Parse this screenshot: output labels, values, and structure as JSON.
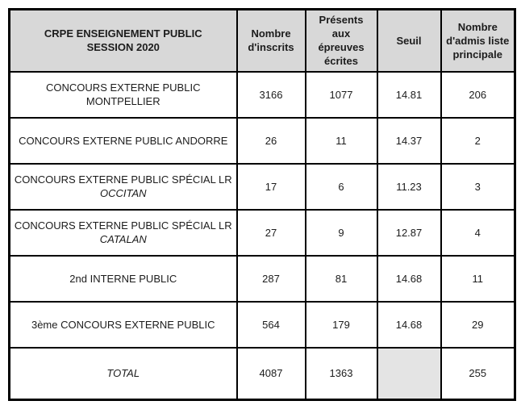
{
  "colors": {
    "header_background": "#d8d8d8",
    "total_seuil_background": "#e4e4e4",
    "border": "#000000",
    "text": "#1c1c1c",
    "page_background": "#ffffff"
  },
  "table": {
    "title_line1": "CRPE ENSEIGNEMENT PUBLIC",
    "title_line2": "SESSION 2020",
    "columns": [
      "Nombre d'inscrits",
      "Présents aux épreuves écrites",
      "Seuil",
      "Nombre d'admis liste principale"
    ],
    "rows": [
      {
        "label_line1": "CONCOURS EXTERNE PUBLIC",
        "label_line2": "MONTPELLIER",
        "inscrits": "3166",
        "presents": "1077",
        "seuil": "14.81",
        "admis": "206"
      },
      {
        "label_line1": "CONCOURS EXTERNE PUBLIC ANDORRE",
        "label_line2": "",
        "inscrits": "26",
        "presents": "11",
        "seuil": "14.37",
        "admis": "2"
      },
      {
        "label_line1": "CONCOURS EXTERNE PUBLIC SPÉCIAL LR",
        "label_line2": "OCCITAN",
        "inscrits": "17",
        "presents": "6",
        "seuil": "11.23",
        "admis": "3"
      },
      {
        "label_line1": "CONCOURS EXTERNE PUBLIC SPÉCIAL LR",
        "label_line2": "CATALAN",
        "inscrits": "27",
        "presents": "9",
        "seuil": "12.87",
        "admis": "4"
      },
      {
        "label_line1": "2nd INTERNE PUBLIC",
        "label_line2": "",
        "inscrits": "287",
        "presents": "81",
        "seuil": "14.68",
        "admis": "11"
      },
      {
        "label_line1": "3ème CONCOURS EXTERNE PUBLIC",
        "label_line2": "",
        "inscrits": "564",
        "presents": "179",
        "seuil": "14.68",
        "admis": "29"
      }
    ],
    "total_row": {
      "label": "TOTAL",
      "inscrits": "4087",
      "presents": "1363",
      "seuil": "",
      "admis": "255"
    }
  }
}
